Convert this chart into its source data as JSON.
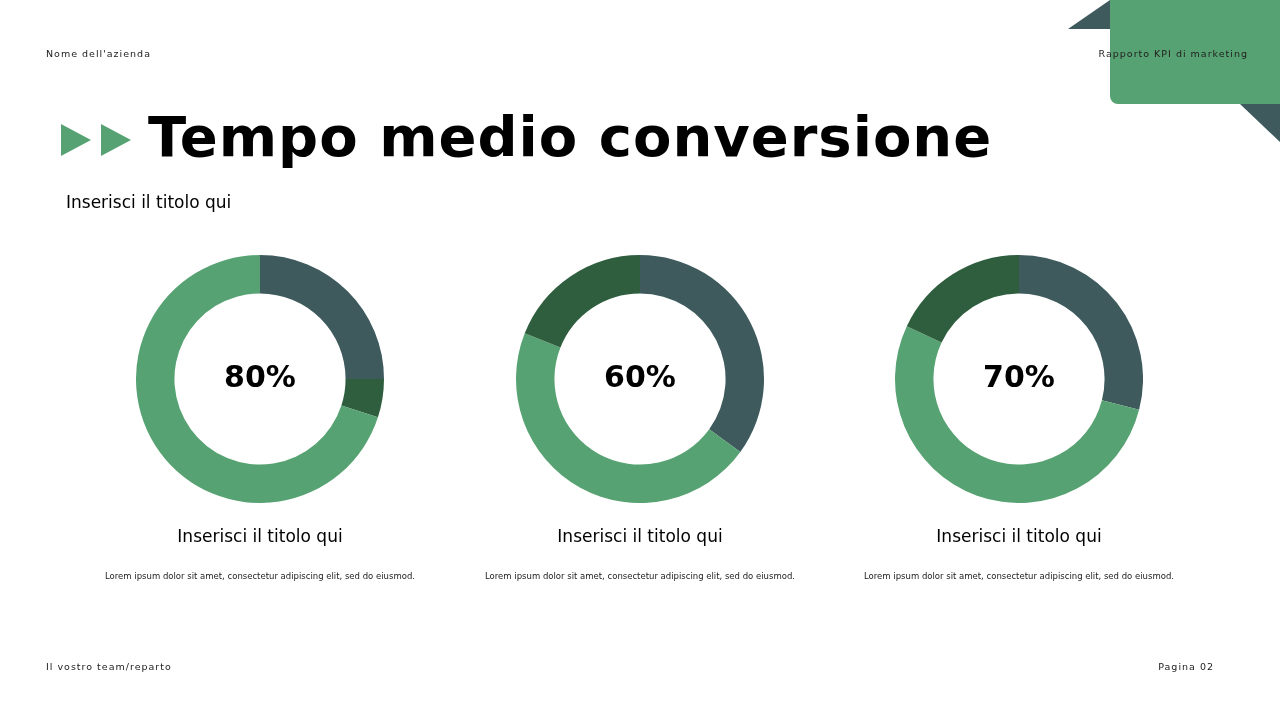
{
  "chart_data": [
    {
      "type": "other",
      "title": "Tempo medio conversione",
      "subtitle": "Inserisci il titolo qui",
      "annotations": [
        "Nome dell'azienda",
        "Rapporto KPI di marketing",
        "Il vostro team/reparto",
        "Pagina 02"
      ]
    },
    {
      "type": "donut",
      "title": "Inserisci il titolo qui",
      "categories": [
        null,
        null,
        null
      ],
      "values": [
        25,
        5,
        70
      ],
      "colors": [
        "#3e5a5c",
        "#2f5e3e",
        "#57a272"
      ],
      "legend": false,
      "annotations": [
        "80%",
        "Lorem ipsum dolor sit amet, consectetur adipiscing elit, sed do eiusmod."
      ]
    },
    {
      "type": "donut",
      "title": "Inserisci il titolo qui",
      "categories": [
        null,
        null,
        null
      ],
      "values": [
        35,
        46,
        19
      ],
      "colors": [
        "#3e5a5c",
        "#57a272",
        "#2f5e3e"
      ],
      "legend": false,
      "annotations": [
        "60%",
        "Lorem ipsum dolor sit amet, consectetur adipiscing elit, sed do eiusmod."
      ]
    },
    {
      "type": "donut",
      "title": "Inserisci il titolo qui",
      "categories": [
        null,
        null,
        null
      ],
      "values": [
        29,
        53,
        18
      ],
      "colors": [
        "#3e5a5c",
        "#57a272",
        "#2f5e3e"
      ],
      "legend": false,
      "annotations": [
        "70%",
        "Lorem ipsum dolor sit amet, consectetur adipiscing elit, sed do eiusmod."
      ]
    }
  ]
}
